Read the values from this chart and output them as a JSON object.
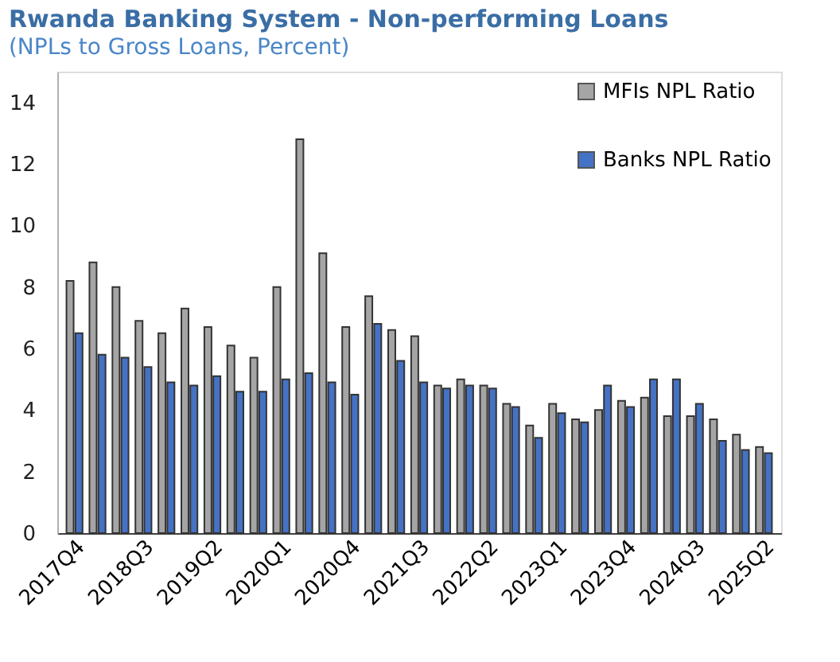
{
  "chart_data": {
    "type": "bar",
    "title": "Rwanda Banking System - Non-performing Loans",
    "subtitle": "(NPLs to Gross Loans, Percent)",
    "categories": [
      "2017Q4",
      null,
      null,
      "2018Q3",
      null,
      null,
      "2019Q2",
      null,
      null,
      "2020Q1",
      null,
      null,
      "2020Q4",
      null,
      null,
      "2021Q3",
      null,
      null,
      "2022Q2",
      null,
      null,
      "2023Q1",
      null,
      null,
      "2023Q4",
      null,
      null,
      "2024Q3",
      null,
      null,
      "2025Q2"
    ],
    "series": [
      {
        "name": "MFIs NPL Ratio",
        "color": "#a5a5a5",
        "values": [
          8.2,
          8.8,
          8.0,
          6.9,
          6.5,
          7.3,
          6.7,
          6.1,
          5.7,
          8.0,
          12.8,
          9.1,
          6.7,
          7.7,
          6.6,
          6.4,
          4.8,
          5.0,
          4.8,
          4.2,
          3.5,
          4.2,
          3.7,
          4.0,
          4.3,
          4.4,
          3.8,
          3.8,
          3.7,
          3.2,
          2.8
        ]
      },
      {
        "name": "Banks NPL Ratio",
        "color": "#4472c4",
        "values": [
          6.5,
          5.8,
          5.7,
          5.4,
          4.9,
          4.8,
          5.1,
          4.6,
          4.6,
          5.0,
          5.2,
          4.9,
          4.5,
          6.8,
          5.6,
          4.9,
          4.7,
          4.8,
          4.7,
          4.1,
          3.1,
          3.9,
          3.6,
          4.8,
          4.1,
          5.0,
          5.0,
          4.2,
          3.0,
          2.7,
          2.6
        ]
      }
    ],
    "ylim": [
      0,
      15
    ],
    "yticks": [
      0,
      2,
      4,
      6,
      8,
      10,
      12,
      14
    ],
    "grid": false,
    "legend": "top right"
  }
}
